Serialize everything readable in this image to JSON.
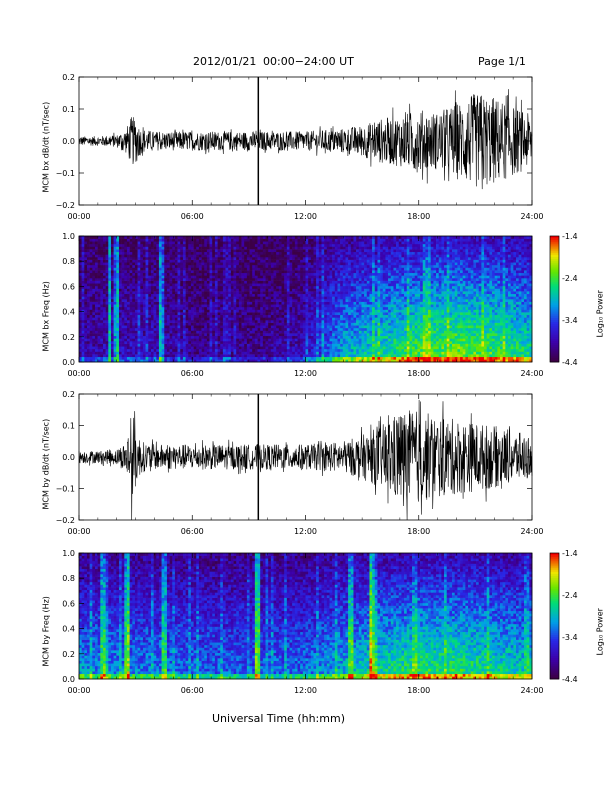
{
  "header": {
    "date": "2012/01/21",
    "range": "00:00−24:00 UT",
    "page": "Page 1/1"
  },
  "xlabel": "Universal Time (hh:mm)",
  "colors": {
    "trace": "#000000",
    "background": "#ffffff"
  },
  "chart_data": [
    {
      "type": "line",
      "ylabel": "MCM bx dB/dt (nT/sec)",
      "xlim": [
        0,
        24
      ],
      "ylim": [
        -0.2,
        0.2
      ],
      "x_ticks": [
        "00:00",
        "06:00",
        "12:00",
        "18:00",
        "24:00"
      ],
      "y_ticks": [
        "0.2",
        "0.1",
        "0.0",
        "−0.1",
        "−0.2"
      ],
      "envelope": {
        "x_hours": [
          0,
          1,
          2,
          2.5,
          2.8,
          3.0,
          3.3,
          4,
          6,
          8,
          9.4,
          9.6,
          11,
          12,
          13,
          14,
          15,
          16,
          17,
          18,
          19,
          20,
          21,
          22,
          23,
          24
        ],
        "amplitude": [
          0.015,
          0.015,
          0.02,
          0.04,
          0.08,
          0.07,
          0.04,
          0.03,
          0.03,
          0.03,
          0.03,
          0.03,
          0.03,
          0.03,
          0.035,
          0.04,
          0.05,
          0.07,
          0.08,
          0.1,
          0.09,
          0.12,
          0.15,
          0.14,
          0.11,
          0.08
        ]
      },
      "spikes": [
        {
          "x_hours": 9.5,
          "y": [
            -0.2,
            0.2
          ]
        }
      ]
    },
    {
      "type": "heatmap",
      "ylabel": "MCM bx Freq (Hz)",
      "xlim": [
        0,
        24
      ],
      "ylim": [
        0.0,
        1.0
      ],
      "x_ticks": [
        "00:00",
        "06:00",
        "12:00",
        "18:00",
        "24:00"
      ],
      "y_ticks": [
        "1.0",
        "0.8",
        "0.6",
        "0.4",
        "0.2",
        "0.0"
      ],
      "colorbar": {
        "label": "Log₁₀ Power",
        "range": [
          -4.4,
          -1.4
        ],
        "ticks": [
          "-1.4",
          "-2.4",
          "-3.4",
          "-4.4"
        ]
      },
      "activity_hours": [
        0,
        2,
        4,
        6,
        8,
        10,
        12,
        13,
        14,
        16,
        18,
        20,
        22,
        24
      ],
      "activity_level": [
        0.15,
        0.2,
        0.2,
        0.12,
        0.12,
        0.12,
        0.2,
        0.35,
        0.5,
        0.6,
        0.7,
        0.75,
        0.7,
        0.6
      ],
      "bright_lines_hours": [
        1.6,
        2.0,
        4.4
      ]
    },
    {
      "type": "line",
      "ylabel": "MCM by dB/dt (nT/sec)",
      "xlim": [
        0,
        24
      ],
      "ylim": [
        -0.2,
        0.2
      ],
      "x_ticks": [
        "00:00",
        "06:00",
        "12:00",
        "18:00",
        "24:00"
      ],
      "y_ticks": [
        "0.2",
        "0.1",
        "0.0",
        "−0.1",
        "−0.2"
      ],
      "envelope": {
        "x_hours": [
          0,
          1,
          2,
          2.5,
          2.8,
          3.0,
          3.3,
          4,
          6,
          8,
          9.4,
          9.6,
          11,
          12,
          13,
          14,
          15,
          16,
          17,
          18,
          19,
          20,
          21,
          22,
          23,
          24
        ],
        "amplitude": [
          0.02,
          0.02,
          0.025,
          0.05,
          0.15,
          0.1,
          0.05,
          0.04,
          0.04,
          0.04,
          0.04,
          0.04,
          0.04,
          0.04,
          0.045,
          0.05,
          0.07,
          0.1,
          0.15,
          0.15,
          0.13,
          0.12,
          0.11,
          0.1,
          0.08,
          0.07
        ]
      },
      "spikes": [
        {
          "x_hours": 9.5,
          "y": [
            -0.2,
            0.2
          ]
        }
      ]
    },
    {
      "type": "heatmap",
      "ylabel": "MCM by Freq (Hz)",
      "xlim": [
        0,
        24
      ],
      "ylim": [
        0.0,
        1.0
      ],
      "x_ticks": [
        "00:00",
        "06:00",
        "12:00",
        "18:00",
        "24:00"
      ],
      "y_ticks": [
        "1.0",
        "0.8",
        "0.6",
        "0.4",
        "0.2",
        "0.0"
      ],
      "colorbar": {
        "label": "Log₁₀ Power",
        "range": [
          -4.4,
          -1.4
        ],
        "ticks": [
          "-1.4",
          "-2.4",
          "-3.4",
          "-4.4"
        ]
      },
      "activity_hours": [
        0,
        2,
        4,
        6,
        8,
        10,
        12,
        13,
        14,
        16,
        18,
        20,
        22,
        24
      ],
      "activity_level": [
        0.45,
        0.45,
        0.42,
        0.4,
        0.38,
        0.38,
        0.4,
        0.45,
        0.5,
        0.6,
        0.65,
        0.65,
        0.6,
        0.55
      ],
      "bright_lines_hours": [
        1.3,
        2.5,
        4.5,
        9.5,
        14.4,
        15.5
      ]
    }
  ]
}
